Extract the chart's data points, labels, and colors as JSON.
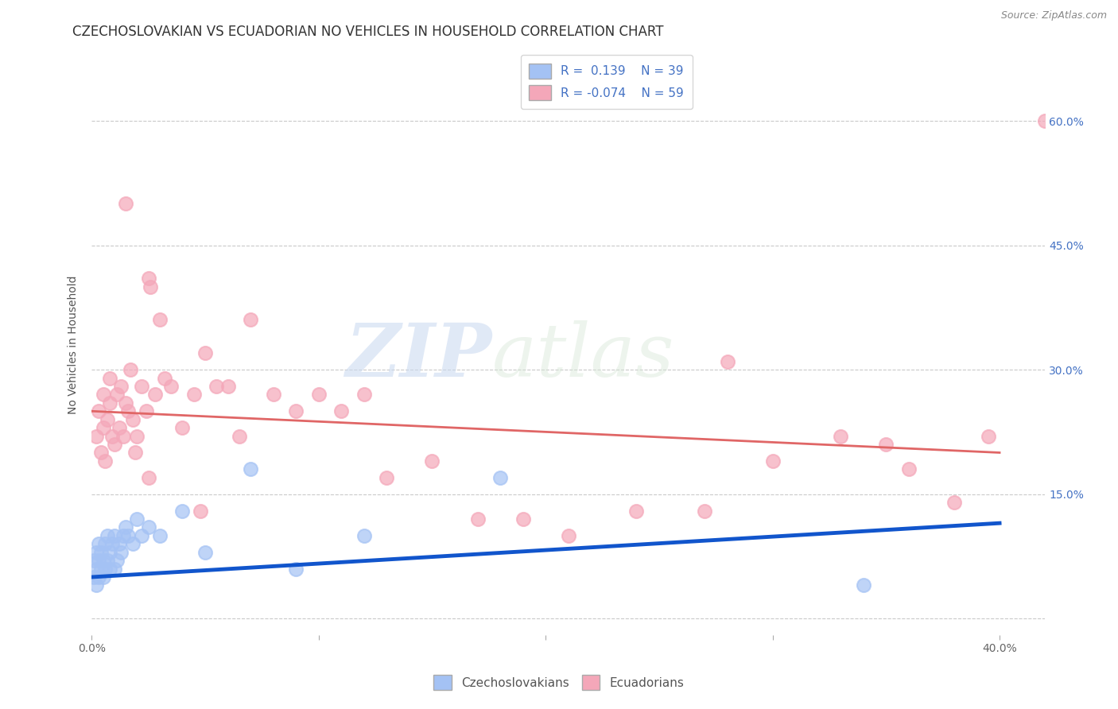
{
  "title": "CZECHOSLOVAKIAN VS ECUADORIAN NO VEHICLES IN HOUSEHOLD CORRELATION CHART",
  "source": "Source: ZipAtlas.com",
  "ylabel": "No Vehicles in Household",
  "xlim": [
    0.0,
    0.42
  ],
  "ylim": [
    -0.02,
    0.68
  ],
  "xticks": [
    0.0,
    0.1,
    0.2,
    0.3,
    0.4
  ],
  "xtick_labels": [
    "0.0%",
    "",
    "",
    "",
    "40.0%"
  ],
  "ytick_right_labels": [
    "",
    "15.0%",
    "30.0%",
    "45.0%",
    "60.0%"
  ],
  "ytick_right_values": [
    0.0,
    0.15,
    0.3,
    0.45,
    0.6
  ],
  "blue_color": "#a4c2f4",
  "pink_color": "#f4a7b9",
  "blue_line_color": "#1155cc",
  "pink_line_color": "#e06666",
  "legend_r_blue": "0.139",
  "legend_n_blue": "39",
  "legend_r_pink": "-0.074",
  "legend_n_pink": "59",
  "blue_x": [
    0.001,
    0.001,
    0.002,
    0.002,
    0.002,
    0.003,
    0.003,
    0.003,
    0.004,
    0.004,
    0.005,
    0.005,
    0.006,
    0.006,
    0.007,
    0.007,
    0.008,
    0.008,
    0.009,
    0.01,
    0.01,
    0.011,
    0.012,
    0.013,
    0.014,
    0.015,
    0.016,
    0.018,
    0.02,
    0.022,
    0.025,
    0.03,
    0.04,
    0.05,
    0.07,
    0.09,
    0.12,
    0.18,
    0.34
  ],
  "blue_y": [
    0.05,
    0.07,
    0.04,
    0.06,
    0.08,
    0.05,
    0.07,
    0.09,
    0.06,
    0.08,
    0.05,
    0.07,
    0.06,
    0.09,
    0.07,
    0.1,
    0.06,
    0.08,
    0.09,
    0.06,
    0.1,
    0.07,
    0.09,
    0.08,
    0.1,
    0.11,
    0.1,
    0.09,
    0.12,
    0.1,
    0.11,
    0.1,
    0.13,
    0.08,
    0.18,
    0.06,
    0.1,
    0.17,
    0.04
  ],
  "pink_x": [
    0.002,
    0.003,
    0.004,
    0.005,
    0.005,
    0.006,
    0.007,
    0.008,
    0.009,
    0.01,
    0.011,
    0.012,
    0.013,
    0.014,
    0.015,
    0.016,
    0.017,
    0.018,
    0.019,
    0.02,
    0.022,
    0.024,
    0.025,
    0.026,
    0.028,
    0.03,
    0.032,
    0.035,
    0.04,
    0.045,
    0.05,
    0.055,
    0.06,
    0.065,
    0.07,
    0.08,
    0.09,
    0.1,
    0.11,
    0.12,
    0.13,
    0.15,
    0.17,
    0.19,
    0.21,
    0.24,
    0.27,
    0.3,
    0.33,
    0.36,
    0.38,
    0.395,
    0.28,
    0.35,
    0.42,
    0.048,
    0.015,
    0.025,
    0.008
  ],
  "pink_y": [
    0.22,
    0.25,
    0.2,
    0.23,
    0.27,
    0.19,
    0.24,
    0.26,
    0.22,
    0.21,
    0.27,
    0.23,
    0.28,
    0.22,
    0.26,
    0.25,
    0.3,
    0.24,
    0.2,
    0.22,
    0.28,
    0.25,
    0.41,
    0.4,
    0.27,
    0.36,
    0.29,
    0.28,
    0.23,
    0.27,
    0.32,
    0.28,
    0.28,
    0.22,
    0.36,
    0.27,
    0.25,
    0.27,
    0.25,
    0.27,
    0.17,
    0.19,
    0.12,
    0.12,
    0.1,
    0.13,
    0.13,
    0.19,
    0.22,
    0.18,
    0.14,
    0.22,
    0.31,
    0.21,
    0.6,
    0.13,
    0.5,
    0.17,
    0.29
  ],
  "background_color": "#ffffff",
  "grid_color": "#c9c9c9",
  "watermark_zip": "ZIP",
  "watermark_atlas": "atlas",
  "title_fontsize": 12,
  "axis_label_fontsize": 10,
  "tick_fontsize": 10,
  "legend_fontsize": 11
}
